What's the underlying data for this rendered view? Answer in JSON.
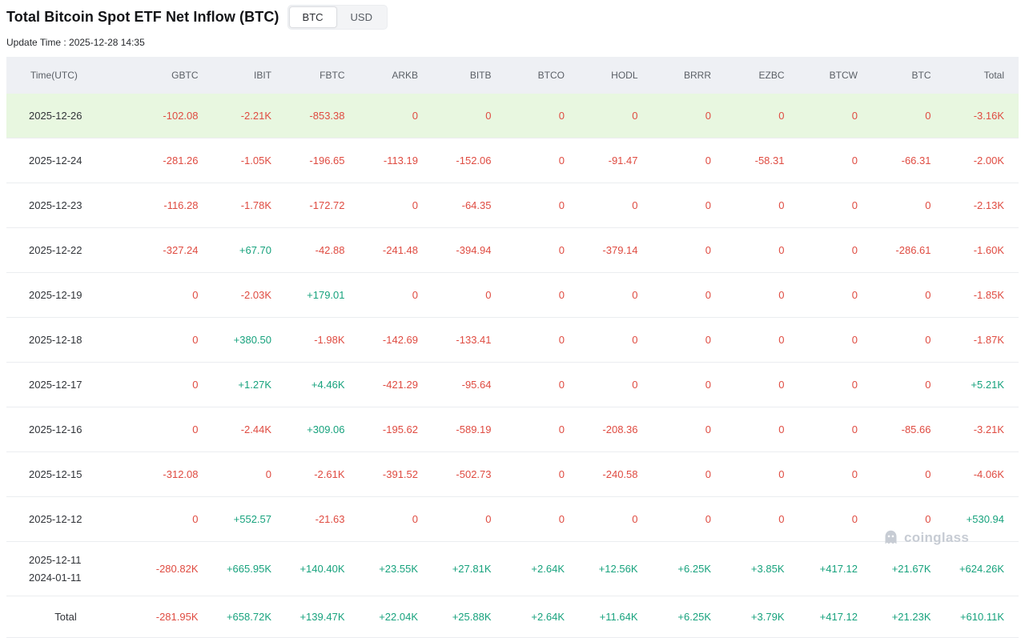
{
  "page": {
    "title": "Total Bitcoin Spot ETF Net Inflow (BTC)",
    "update_time": "Update Time : 2025-12-28 14:35",
    "unit_toggle": {
      "options": [
        "BTC",
        "USD"
      ],
      "selected": "BTC"
    },
    "watermark_text": "coinglass"
  },
  "colors": {
    "positive": "#17a27d",
    "negative": "#df4b41",
    "zero": "#df4b41",
    "highlight_row": "#e8f7e0",
    "header_bg": "#eef0f4"
  },
  "chart_data": {
    "type": "table",
    "title": "Total Bitcoin Spot ETF Net Inflow (BTC)",
    "columns": [
      "Time(UTC)",
      "GBTC",
      "IBIT",
      "FBTC",
      "ARKB",
      "BITB",
      "BTCO",
      "HODL",
      "BRRR",
      "EZBC",
      "BTCW",
      "BTC",
      "Total"
    ],
    "rows": [
      {
        "time": "2025-12-26",
        "highlight": true,
        "values": [
          "-102.08",
          "-2.21K",
          "-853.38",
          "0",
          "0",
          "0",
          "0",
          "0",
          "0",
          "0",
          "0",
          "-3.16K"
        ]
      },
      {
        "time": "2025-12-24",
        "values": [
          "-281.26",
          "-1.05K",
          "-196.65",
          "-113.19",
          "-152.06",
          "0",
          "-91.47",
          "0",
          "-58.31",
          "0",
          "-66.31",
          "-2.00K"
        ]
      },
      {
        "time": "2025-12-23",
        "values": [
          "-116.28",
          "-1.78K",
          "-172.72",
          "0",
          "-64.35",
          "0",
          "0",
          "0",
          "0",
          "0",
          "0",
          "-2.13K"
        ]
      },
      {
        "time": "2025-12-22",
        "values": [
          "-327.24",
          "+67.70",
          "-42.88",
          "-241.48",
          "-394.94",
          "0",
          "-379.14",
          "0",
          "0",
          "0",
          "-286.61",
          "-1.60K"
        ]
      },
      {
        "time": "2025-12-19",
        "values": [
          "0",
          "-2.03K",
          "+179.01",
          "0",
          "0",
          "0",
          "0",
          "0",
          "0",
          "0",
          "0",
          "-1.85K"
        ]
      },
      {
        "time": "2025-12-18",
        "values": [
          "0",
          "+380.50",
          "-1.98K",
          "-142.69",
          "-133.41",
          "0",
          "0",
          "0",
          "0",
          "0",
          "0",
          "-1.87K"
        ]
      },
      {
        "time": "2025-12-17",
        "values": [
          "0",
          "+1.27K",
          "+4.46K",
          "-421.29",
          "-95.64",
          "0",
          "0",
          "0",
          "0",
          "0",
          "0",
          "+5.21K"
        ]
      },
      {
        "time": "2025-12-16",
        "values": [
          "0",
          "-2.44K",
          "+309.06",
          "-195.62",
          "-589.19",
          "0",
          "-208.36",
          "0",
          "0",
          "0",
          "-85.66",
          "-3.21K"
        ]
      },
      {
        "time": "2025-12-15",
        "values": [
          "-312.08",
          "0",
          "-2.61K",
          "-391.52",
          "-502.73",
          "0",
          "-240.58",
          "0",
          "0",
          "0",
          "0",
          "-4.06K"
        ]
      },
      {
        "time": "2025-12-12",
        "values": [
          "0",
          "+552.57",
          "-21.63",
          "0",
          "0",
          "0",
          "0",
          "0",
          "0",
          "0",
          "0",
          "+530.94"
        ]
      },
      {
        "time": "2025-12-11\n2024-01-11",
        "values": [
          "-280.82K",
          "+665.95K",
          "+140.40K",
          "+23.55K",
          "+27.81K",
          "+2.64K",
          "+12.56K",
          "+6.25K",
          "+3.85K",
          "+417.12",
          "+21.67K",
          "+624.26K"
        ]
      },
      {
        "time": "Total",
        "total": true,
        "values": [
          "-281.95K",
          "+658.72K",
          "+139.47K",
          "+22.04K",
          "+25.88K",
          "+2.64K",
          "+11.64K",
          "+6.25K",
          "+3.79K",
          "+417.12",
          "+21.23K",
          "+610.11K"
        ]
      }
    ]
  }
}
